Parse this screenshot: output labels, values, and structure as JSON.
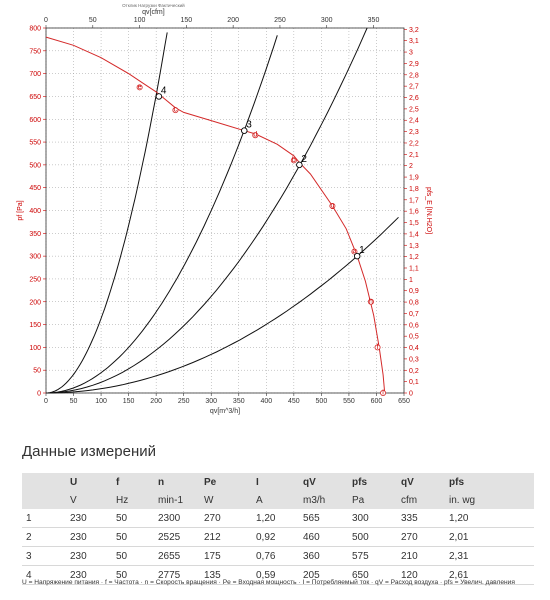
{
  "chart_data": {
    "type": "line",
    "header_text": "Отклик Нагрузки Фактический",
    "xlabel_bottom": "qv[m^3/h]",
    "xlabel_top": "qv[cfm]",
    "ylabel_left": "pf [Pa]",
    "ylabel_right": "pfs_E [IN.H2O]",
    "xlim": [
      0,
      650
    ],
    "ylim": [
      0,
      800
    ],
    "x_ticks": [
      0,
      50,
      100,
      150,
      200,
      250,
      300,
      350,
      400,
      450,
      500,
      550,
      600,
      650
    ],
    "y_ticks": [
      0,
      50,
      100,
      150,
      200,
      250,
      300,
      350,
      400,
      450,
      500,
      550,
      600,
      650,
      700,
      750,
      800
    ],
    "top_ticks": [
      0,
      50,
      100,
      150,
      200,
      250,
      300,
      350
    ],
    "right_ticks": [
      "0",
      "0,1",
      "0,2",
      "0,3",
      "0,4",
      "0,5",
      "0,6",
      "0,7",
      "0,8",
      "0,9",
      "1",
      "1,1",
      "1,2",
      "1,3",
      "1,4",
      "1,5",
      "1,6",
      "1,7",
      "1,8",
      "1,9",
      "2",
      "2,1",
      "2,2",
      "2,3",
      "2,4",
      "2,5",
      "2,6",
      "2,7",
      "2,8",
      "2,9",
      "3",
      "3,1",
      "3,2"
    ],
    "series": [
      {
        "points": [
          [
            0,
            780
          ],
          [
            50,
            762
          ],
          [
            100,
            735
          ],
          [
            150,
            700
          ],
          [
            175,
            680
          ],
          [
            200,
            660
          ],
          [
            235,
            625
          ],
          [
            250,
            615
          ],
          [
            300,
            597
          ],
          [
            360,
            575
          ],
          [
            380,
            568
          ],
          [
            420,
            545
          ],
          [
            450,
            520
          ],
          [
            460,
            505
          ],
          [
            480,
            480
          ],
          [
            520,
            410
          ],
          [
            545,
            360
          ],
          [
            565,
            300
          ],
          [
            580,
            245
          ],
          [
            595,
            170
          ],
          [
            605,
            100
          ],
          [
            612,
            40
          ],
          [
            615,
            0
          ]
        ],
        "markers": [
          {
            "x": 170,
            "y": 670,
            "label": "e"
          },
          {
            "x": 235,
            "y": 620,
            "label": "c"
          },
          {
            "x": 380,
            "y": 565,
            "label": "d"
          },
          {
            "x": 450,
            "y": 510,
            "label": "b"
          },
          {
            "x": 520,
            "y": 410,
            "label": "g"
          },
          {
            "x": 560,
            "y": 310,
            "label": "a"
          },
          {
            "x": 590,
            "y": 200,
            "label": "h"
          },
          {
            "x": 602,
            "y": 100,
            "label": "f"
          },
          {
            "x": 612,
            "y": 0,
            "label": "i"
          }
        ]
      }
    ],
    "system_curves": [
      {
        "k": 0.01633,
        "x_end": 220
      },
      {
        "k": 0.004444,
        "x_end": 420
      },
      {
        "k": 0.002353,
        "x_end": 640
      },
      {
        "k": 0.00094,
        "x_end": 640
      }
    ],
    "operating_points": [
      {
        "label": "1",
        "x": 565,
        "y": 300
      },
      {
        "label": "2",
        "x": 460,
        "y": 500
      },
      {
        "label": "3",
        "x": 360,
        "y": 575
      },
      {
        "label": "4",
        "x": 205,
        "y": 650
      }
    ],
    "colors": {
      "red": "#d42a2a",
      "black": "#111111",
      "grid": "#999999",
      "marker": "#d42a2a"
    }
  },
  "section_title": "Данные измерений",
  "table": {
    "header": [
      "",
      "U",
      "f",
      "n",
      "Pe",
      "I",
      "qV",
      "pfs",
      "qV",
      "pfs"
    ],
    "units": [
      "",
      "V",
      "Hz",
      "min-1",
      "W",
      "A",
      "m3/h",
      "Pa",
      "cfm",
      "in. wg"
    ],
    "rows": [
      [
        "1",
        "230",
        "50",
        "2300",
        "270",
        "1,20",
        "565",
        "300",
        "335",
        "1,20"
      ],
      [
        "2",
        "230",
        "50",
        "2525",
        "212",
        "0,92",
        "460",
        "500",
        "270",
        "2,01"
      ],
      [
        "3",
        "230",
        "50",
        "2655",
        "175",
        "0,76",
        "360",
        "575",
        "210",
        "2,31"
      ],
      [
        "4",
        "230",
        "50",
        "2775",
        "135",
        "0,59",
        "205",
        "650",
        "120",
        "2,61"
      ]
    ]
  },
  "footnote": "U = Напряжение питания · f = Частота · n = Скорость вращения · Pe = Входная мощность · I = Потребляемый ток · qV = Расход воздуха · pfs = Увелич. давления"
}
